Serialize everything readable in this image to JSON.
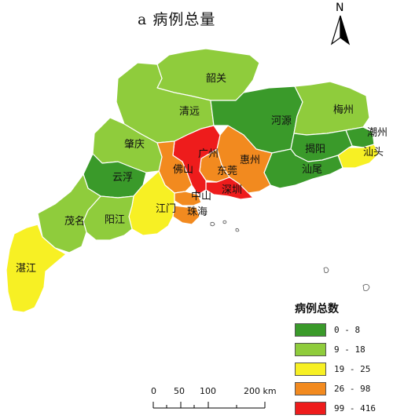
{
  "title": "a  病例总量",
  "north_label": "N",
  "legend": {
    "title": "病例总数",
    "classes": [
      {
        "label": "0 - 8",
        "color": "#3a9a2a"
      },
      {
        "label": "9 - 18",
        "color": "#8fcc3c"
      },
      {
        "label": "19 - 25",
        "color": "#f7f024"
      },
      {
        "label": "26 - 98",
        "color": "#f28a1f"
      },
      {
        "label": "99 - 416",
        "color": "#ee1c1c"
      }
    ]
  },
  "scale_bar": {
    "ticks": [
      "0",
      "50",
      "100",
      "200 km"
    ]
  },
  "regions": [
    {
      "name": "韶关",
      "class": 1
    },
    {
      "name": "清远",
      "class": 1
    },
    {
      "name": "河源",
      "class": 0
    },
    {
      "name": "梅州",
      "class": 1
    },
    {
      "name": "潮州",
      "class": 0
    },
    {
      "name": "汕头",
      "class": 2
    },
    {
      "name": "揭阳",
      "class": 0
    },
    {
      "name": "汕尾",
      "class": 0
    },
    {
      "name": "惠州",
      "class": 3
    },
    {
      "name": "东莞",
      "class": 3
    },
    {
      "name": "广州",
      "class": 4
    },
    {
      "name": "深圳",
      "class": 4
    },
    {
      "name": "佛山",
      "class": 3
    },
    {
      "name": "肇庆",
      "class": 1
    },
    {
      "name": "云浮",
      "class": 0
    },
    {
      "name": "中山",
      "class": 3
    },
    {
      "name": "珠海",
      "class": 3
    },
    {
      "name": "江门",
      "class": 2
    },
    {
      "name": "阳江",
      "class": 1
    },
    {
      "name": "茂名",
      "class": 1
    },
    {
      "name": "湛江",
      "class": 2
    }
  ]
}
